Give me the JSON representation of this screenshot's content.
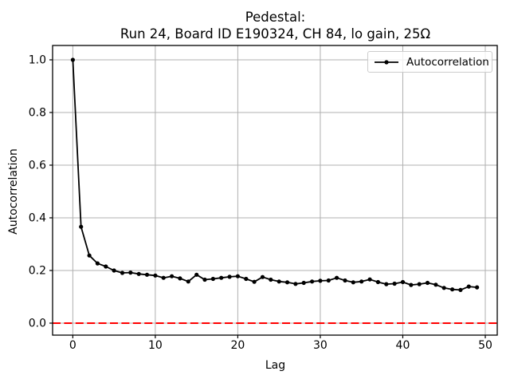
{
  "figure": {
    "title_line1": "Pedestal:",
    "title_line2": "Run 24, Board ID E190324, CH 84, lo gain, 25Ω"
  },
  "colors": {
    "line": "#000000",
    "grid": "#b0b0b0",
    "spine": "#000000",
    "background": "#ffffff",
    "reference_line": "#ff0000",
    "legend_border": "#cccccc",
    "text": "#000000"
  },
  "chart_data": {
    "type": "line",
    "title": "Pedestal:\nRun 24, Board ID E190324, CH 84, lo gain, 25Ω",
    "xlabel": "Lag",
    "ylabel": "Autocorrelation",
    "xlim": [
      -2.45,
      51.45
    ],
    "ylim": [
      -0.0455,
      1.0545
    ],
    "x_ticks": [
      0,
      10,
      20,
      30,
      40,
      50
    ],
    "x_tick_labels": [
      "0",
      "10",
      "20",
      "30",
      "40",
      "50"
    ],
    "y_ticks": [
      0.0,
      0.2,
      0.4,
      0.6,
      0.8,
      1.0
    ],
    "y_tick_labels": [
      "0.0",
      "0.2",
      "0.4",
      "0.6",
      "0.8",
      "1.0"
    ],
    "grid": true,
    "legend": {
      "position": "upper right",
      "entries": [
        "Autocorrelation"
      ]
    },
    "series": [
      {
        "name": "Autocorrelation",
        "color": "#000000",
        "marker": "circle",
        "x": [
          0,
          1,
          2,
          3,
          4,
          5,
          6,
          7,
          8,
          9,
          10,
          11,
          12,
          13,
          14,
          15,
          16,
          17,
          18,
          19,
          20,
          21,
          22,
          23,
          24,
          25,
          26,
          27,
          28,
          29,
          30,
          31,
          32,
          33,
          34,
          35,
          36,
          37,
          38,
          39,
          40,
          41,
          42,
          43,
          44,
          45,
          46,
          47,
          48,
          49
        ],
        "y": [
          1.0,
          0.366,
          0.257,
          0.227,
          0.215,
          0.2,
          0.191,
          0.192,
          0.187,
          0.184,
          0.181,
          0.172,
          0.178,
          0.17,
          0.158,
          0.184,
          0.165,
          0.168,
          0.172,
          0.176,
          0.178,
          0.168,
          0.157,
          0.175,
          0.165,
          0.158,
          0.155,
          0.149,
          0.153,
          0.158,
          0.161,
          0.162,
          0.172,
          0.162,
          0.155,
          0.158,
          0.166,
          0.156,
          0.148,
          0.15,
          0.156,
          0.145,
          0.148,
          0.153,
          0.146,
          0.134,
          0.128,
          0.126,
          0.139,
          0.136
        ]
      }
    ],
    "reference_lines": [
      {
        "type": "horizontal",
        "y": 0.0,
        "color": "#ff0000",
        "style": "dashed"
      }
    ]
  }
}
